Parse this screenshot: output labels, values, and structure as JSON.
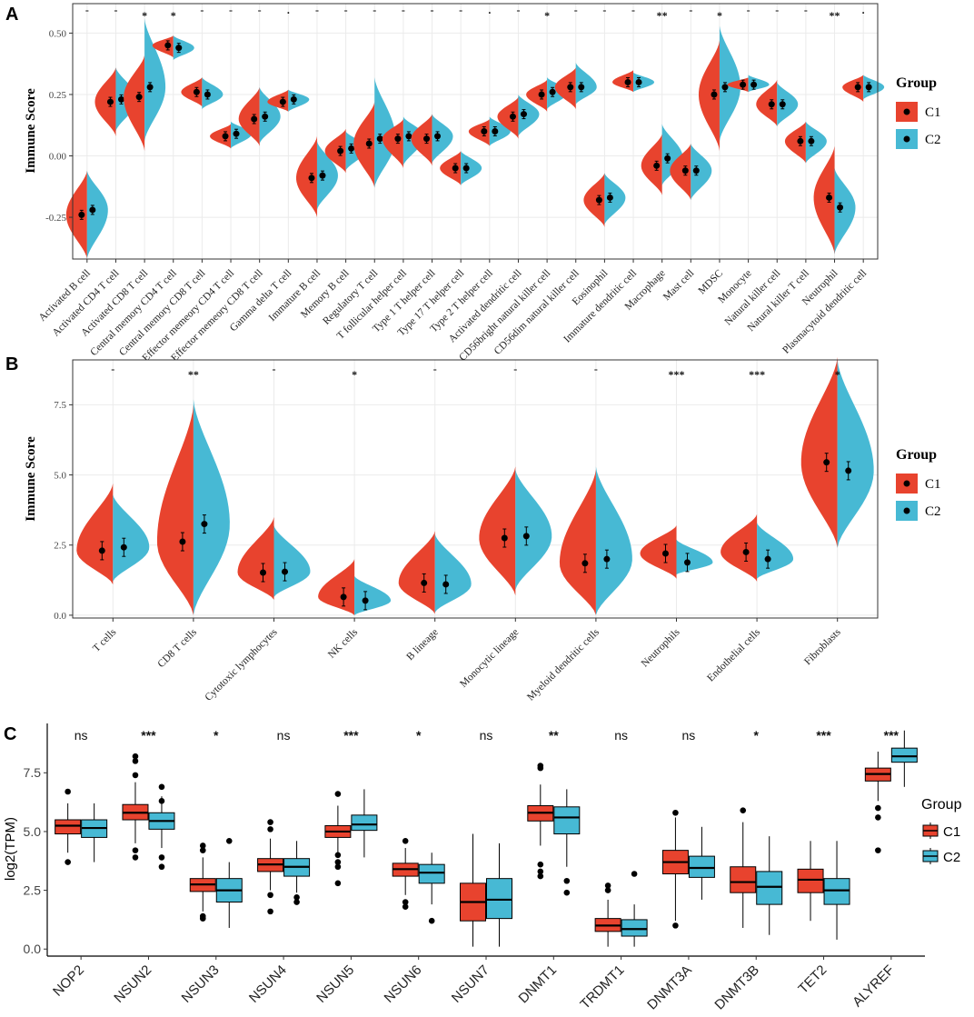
{
  "colors": {
    "c1": "#E8432E",
    "c2": "#47B9D4",
    "grid": "#ebebeb",
    "frame": "#333333",
    "text": "#222222"
  },
  "chart_data": [
    {
      "panel": "A",
      "type": "violin",
      "ylabel": "Immune Score",
      "ylim": [
        -0.42,
        0.62
      ],
      "yticks": [
        -0.25,
        0.0,
        0.25,
        0.5
      ],
      "ytick_labels": [
        "-0.25",
        "0.00",
        "0.25",
        "0.50"
      ],
      "legend": {
        "title": "Group",
        "labels": [
          "C1",
          "C2"
        ],
        "position": "right"
      },
      "categories": [
        "Activated B cell",
        "Activated CD4 T cell",
        "Activated CD8 T cell",
        "Central memory CD4 T cell",
        "Central memory CD8 T cell",
        "Effector memeory CD4 T cell",
        "Effector memeory CD8 T cell",
        "Gamma delta T cell",
        "Immature  B cell",
        "Memory B cell",
        "Regulatory T cell",
        "T follicular helper cell",
        "Type 1 T helper cell",
        "Type 17 T helper cell",
        "Type 2 T helper cell",
        "Activated dendritic cell",
        "CD56bright natural killer cell",
        "CD56dim natural killer cell",
        "Eosinophil",
        "Immature dendritic cell",
        "Macrophage",
        "Mast cell",
        "MDSC",
        "Monocyte",
        "Natural killer cell",
        "Natural killer T cell",
        "Neutrophil",
        "Plasmacytoid dendritic cell"
      ],
      "significance": [
        "-",
        "-",
        "*",
        "*",
        "-",
        "-",
        "-",
        ".",
        "-",
        "-",
        "-",
        "-",
        "-",
        "-",
        ".",
        "-",
        "*",
        "-",
        "-",
        "-",
        "**",
        "-",
        "*",
        "-",
        "-",
        "-",
        "**",
        "."
      ],
      "series": [
        {
          "name": "C1",
          "mean": [
            -0.24,
            0.22,
            0.24,
            0.45,
            0.26,
            0.08,
            0.15,
            0.22,
            -0.09,
            0.02,
            0.05,
            0.07,
            0.07,
            -0.05,
            0.1,
            0.16,
            0.25,
            0.28,
            -0.18,
            0.3,
            -0.04,
            -0.06,
            0.25,
            0.29,
            0.21,
            0.06,
            -0.17,
            0.28
          ],
          "min": [
            -0.42,
            0.08,
            0.02,
            0.4,
            0.2,
            0.03,
            0.04,
            0.18,
            -0.25,
            -0.07,
            -0.13,
            -0.05,
            -0.04,
            -0.12,
            0.04,
            0.07,
            0.18,
            0.19,
            -0.29,
            0.26,
            -0.16,
            -0.18,
            0.02,
            0.26,
            0.12,
            -0.03,
            -0.4,
            0.22
          ],
          "max": [
            -0.06,
            0.36,
            0.41,
            0.49,
            0.32,
            0.13,
            0.28,
            0.27,
            0.08,
            0.11,
            0.22,
            0.15,
            0.17,
            0.02,
            0.15,
            0.24,
            0.31,
            0.36,
            -0.07,
            0.35,
            0.09,
            0.05,
            0.47,
            0.32,
            0.31,
            0.14,
            0.04,
            0.33
          ]
        },
        {
          "name": "C2",
          "mean": [
            -0.22,
            0.23,
            0.28,
            0.44,
            0.25,
            0.09,
            0.16,
            0.23,
            -0.08,
            0.03,
            0.07,
            0.08,
            0.08,
            -0.05,
            0.1,
            0.17,
            0.26,
            0.28,
            -0.17,
            0.3,
            -0.01,
            -0.06,
            0.28,
            0.29,
            0.21,
            0.06,
            -0.21,
            0.28
          ],
          "min": [
            -0.42,
            0.1,
            0.06,
            0.39,
            0.19,
            0.03,
            0.05,
            0.18,
            -0.22,
            -0.06,
            -0.13,
            -0.04,
            -0.03,
            -0.12,
            0.04,
            0.08,
            0.19,
            0.21,
            -0.28,
            0.26,
            -0.12,
            -0.18,
            0.06,
            0.26,
            0.12,
            -0.03,
            -0.4,
            0.23
          ],
          "max": [
            -0.06,
            0.36,
            0.56,
            0.49,
            0.32,
            0.14,
            0.28,
            0.27,
            0.06,
            0.1,
            0.32,
            0.16,
            0.17,
            0.02,
            0.16,
            0.25,
            0.32,
            0.38,
            -0.07,
            0.34,
            0.13,
            0.05,
            0.53,
            0.33,
            0.3,
            0.14,
            -0.05,
            0.33
          ]
        }
      ]
    },
    {
      "panel": "B",
      "type": "violin",
      "ylabel": "Immune Score",
      "ylim": [
        -0.1,
        9.1
      ],
      "yticks": [
        0.0,
        2.5,
        5.0,
        7.5
      ],
      "ytick_labels": [
        "0.0",
        "2.5",
        "5.0",
        "7.5"
      ],
      "legend": {
        "title": "Group",
        "labels": [
          "C1",
          "C2"
        ],
        "position": "right"
      },
      "categories": [
        "T cells",
        "CD8 T cells",
        "Cytotoxic lymphocytes",
        "NK cells",
        "B lineage",
        "Monocytic lineage",
        "Myeloid dendritic cells",
        "Neutrophils",
        "Endothelial cells",
        "Fibroblasts"
      ],
      "significance": [
        "-",
        "**",
        "-",
        "*",
        "-",
        "-",
        "-",
        "***",
        "***",
        "*"
      ],
      "series": [
        {
          "name": "C1",
          "mean": [
            2.3,
            2.62,
            1.52,
            0.65,
            1.15,
            2.75,
            1.85,
            2.2,
            2.25,
            5.45
          ],
          "min": [
            1.1,
            0.0,
            0.55,
            0.0,
            0.05,
            0.7,
            0.0,
            1.3,
            1.2,
            2.4
          ],
          "max": [
            4.7,
            7.5,
            3.5,
            2.0,
            3.0,
            5.3,
            5.2,
            3.2,
            3.6,
            9.2
          ]
        },
        {
          "name": "C2",
          "mean": [
            2.42,
            3.25,
            1.55,
            0.52,
            1.1,
            2.82,
            2.0,
            1.88,
            2.0,
            5.15
          ],
          "min": [
            1.2,
            0.0,
            0.65,
            0.0,
            0.1,
            0.9,
            0.0,
            1.45,
            1.3,
            2.4
          ],
          "max": [
            4.3,
            7.7,
            3.2,
            1.4,
            2.9,
            5.2,
            5.3,
            2.7,
            3.3,
            9.1
          ]
        }
      ]
    },
    {
      "panel": "C",
      "type": "box",
      "ylabel": "log2(TPM)",
      "ylim": [
        -0.3,
        9.6
      ],
      "yticks": [
        0.0,
        2.5,
        5.0,
        7.5
      ],
      "ytick_labels": [
        "0.0",
        "2.5",
        "5.0",
        "7.5"
      ],
      "legend": {
        "title": "Group",
        "labels": [
          "C1",
          "C2"
        ],
        "position": "right"
      },
      "categories": [
        "NOP2",
        "NSUN2",
        "NSUN3",
        "NSUN4",
        "NSUN5",
        "NSUN6",
        "NSUN7",
        "DNMT1",
        "TRDMT1",
        "DNMT3A",
        "DNMT3B",
        "TET2",
        "ALYREF"
      ],
      "significance": [
        "ns",
        "***",
        "*",
        "ns",
        "***",
        "*",
        "ns",
        "**",
        "ns",
        "ns",
        "*",
        "***",
        "***"
      ],
      "series": [
        {
          "name": "C1",
          "q1": [
            4.9,
            5.5,
            2.45,
            3.3,
            4.75,
            3.1,
            1.2,
            5.45,
            0.75,
            3.2,
            2.4,
            2.4,
            7.15
          ],
          "median": [
            5.25,
            5.8,
            2.75,
            3.6,
            5.0,
            3.4,
            2.0,
            5.8,
            1.0,
            3.7,
            2.85,
            2.95,
            7.45
          ],
          "q3": [
            5.5,
            6.15,
            3.0,
            3.85,
            5.25,
            3.65,
            2.8,
            6.1,
            1.3,
            4.2,
            3.5,
            3.4,
            7.7
          ],
          "whisker_low": [
            4.1,
            4.5,
            1.6,
            2.5,
            4.0,
            2.3,
            0.1,
            4.4,
            0.1,
            1.2,
            0.9,
            1.2,
            6.3
          ],
          "whisker_high": [
            6.2,
            7.1,
            3.9,
            4.7,
            6.1,
            4.3,
            4.9,
            7.0,
            2.1,
            5.6,
            5.4,
            4.6,
            8.4
          ],
          "outliers": [
            [
              6.7,
              3.7
            ],
            [
              8.2,
              8.0,
              7.4,
              4.2,
              3.9
            ],
            [
              4.4,
              4.2,
              1.4,
              1.3
            ],
            [
              5.4,
              5.1,
              2.3,
              1.6
            ],
            [
              6.6,
              4.0,
              3.7,
              3.5,
              2.8
            ],
            [
              4.6,
              2.0,
              1.8
            ],
            [],
            [
              7.8,
              7.7,
              3.6,
              3.3,
              3.1
            ],
            [
              2.7,
              2.5
            ],
            [
              5.8,
              1.0
            ],
            [
              5.9
            ],
            [],
            [
              6.0,
              5.6,
              4.2
            ]
          ]
        },
        {
          "name": "C2",
          "q1": [
            4.75,
            5.1,
            2.0,
            3.1,
            5.05,
            2.8,
            1.3,
            4.9,
            0.55,
            3.05,
            1.9,
            1.9,
            7.95
          ],
          "median": [
            5.15,
            5.45,
            2.5,
            3.5,
            5.3,
            3.25,
            2.1,
            5.6,
            0.85,
            3.45,
            2.65,
            2.5,
            8.2
          ],
          "q3": [
            5.5,
            5.8,
            3.0,
            3.85,
            5.7,
            3.6,
            3.0,
            6.05,
            1.25,
            3.95,
            3.3,
            3.0,
            8.55
          ],
          "whisker_low": [
            3.7,
            4.3,
            0.9,
            2.4,
            3.9,
            1.9,
            0.1,
            3.5,
            0.1,
            2.1,
            0.6,
            0.4,
            6.9
          ],
          "whisker_high": [
            6.2,
            6.5,
            3.7,
            4.6,
            6.8,
            4.1,
            4.5,
            6.8,
            1.9,
            5.2,
            4.8,
            4.6,
            9.3
          ],
          "outliers": [
            [],
            [
              6.9,
              6.3,
              3.9,
              3.5
            ],
            [
              4.6
            ],
            [
              2.2,
              2.0
            ],
            [],
            [
              1.2
            ],
            [],
            [
              2.9,
              2.4
            ],
            [
              3.2
            ],
            [],
            [],
            [],
            []
          ]
        }
      ]
    }
  ]
}
